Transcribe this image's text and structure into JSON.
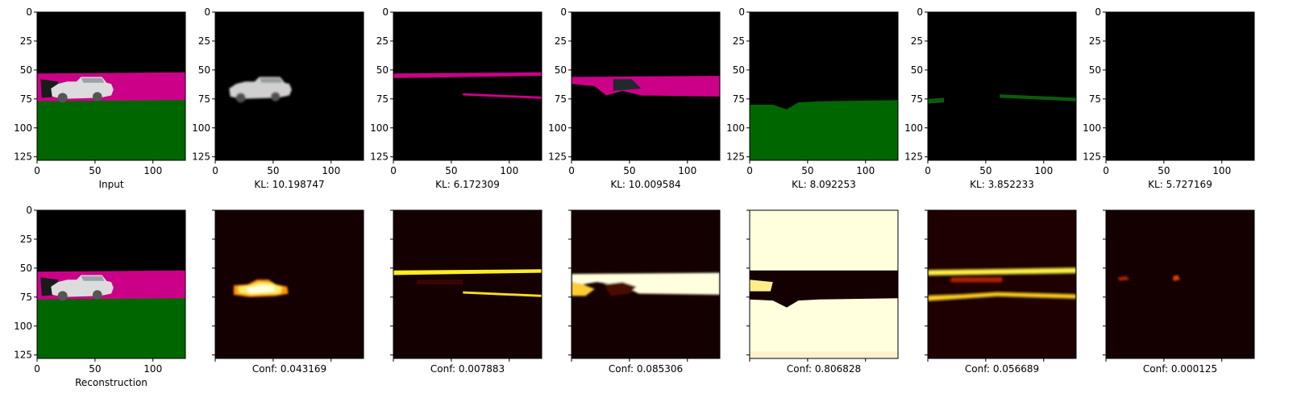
{
  "figure": {
    "background": "#ffffff",
    "colors": {
      "black": "#000000",
      "magenta": "#cc0088",
      "green": "#006600",
      "car": "#dcdcdc",
      "heat_dark": "#140000",
      "heat_hot": "#ffffdd"
    }
  },
  "chart_data": {
    "type": "heatmap",
    "image_size": [
      128,
      128
    ],
    "x_ticks": [
      "0",
      "50",
      "100"
    ],
    "y_ticks": [
      "0",
      "25",
      "50",
      "75",
      "100",
      "125"
    ],
    "x_tick_values": [
      0,
      50,
      100
    ],
    "y_tick_values": [
      0,
      25,
      50,
      75,
      100,
      125
    ],
    "top_row": [
      {
        "caption": "Input",
        "show_yticks": true,
        "render": "input"
      },
      {
        "caption": "KL: 10.198747",
        "show_yticks": true,
        "render": "car"
      },
      {
        "caption": "KL: 6.172309",
        "show_yticks": true,
        "render": "road"
      },
      {
        "caption": "KL: 10.009584",
        "show_yticks": true,
        "render": "wall"
      },
      {
        "caption": "KL: 8.092253",
        "show_yticks": true,
        "render": "ground"
      },
      {
        "caption": "KL: 3.852233",
        "show_yticks": true,
        "render": "faint"
      },
      {
        "caption": "KL: 5.727169",
        "show_yticks": true,
        "render": "empty"
      }
    ],
    "bottom_row": [
      {
        "caption": "Reconstruction",
        "show_ticklabels": true,
        "render": "input"
      },
      {
        "caption": "Conf: 0.043169",
        "show_ticklabels": false,
        "render": "heat_car"
      },
      {
        "caption": "Conf: 0.007883",
        "show_ticklabels": false,
        "render": "heat_road"
      },
      {
        "caption": "Conf: 0.085306",
        "show_ticklabels": false,
        "render": "heat_wall"
      },
      {
        "caption": "Conf: 0.806828",
        "show_ticklabels": false,
        "render": "heat_ground"
      },
      {
        "caption": "Conf: 0.056689",
        "show_ticklabels": false,
        "render": "heat_faint"
      },
      {
        "caption": "Conf: 0.000125",
        "show_ticklabels": false,
        "render": "heat_empty"
      }
    ]
  }
}
